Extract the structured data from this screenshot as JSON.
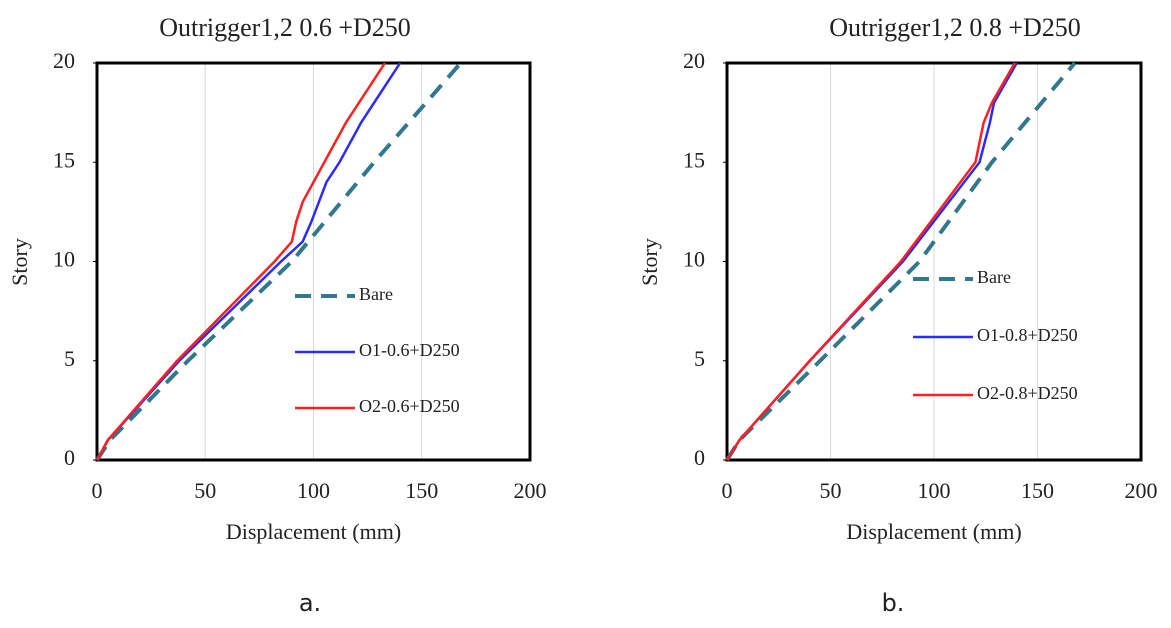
{
  "chart_data": [
    {
      "type": "line",
      "title": "Outrigger1,2 0.6 +D250",
      "xlabel": "Displacement (mm)",
      "ylabel": "Story",
      "caption": "a.",
      "xlim": [
        0,
        200
      ],
      "xticks": [
        0,
        50,
        100,
        150,
        200
      ],
      "ylim": [
        0,
        20
      ],
      "yticks": [
        0,
        5,
        10,
        15,
        20
      ],
      "grid": true,
      "series": [
        {
          "name": "Bare",
          "color": "#31788f",
          "dashed": true,
          "x": [
            0,
            6,
            42,
            90,
            128,
            168
          ],
          "y": [
            0,
            1,
            5,
            10,
            15,
            20
          ]
        },
        {
          "name": "O1-0.6+D250",
          "color": "#2b2bff",
          "x": [
            0,
            5,
            38,
            85,
            95,
            99,
            106,
            112,
            122,
            140
          ],
          "y": [
            0,
            1,
            5,
            10,
            11,
            12,
            14,
            15,
            17,
            20
          ]
        },
        {
          "name": "O2-0.6+D250",
          "color": "#ff2020",
          "x": [
            0,
            5,
            37,
            82,
            90,
            92,
            95,
            100,
            115,
            133
          ],
          "y": [
            0,
            1,
            5,
            10,
            11,
            12,
            13,
            14,
            17,
            20
          ]
        }
      ]
    },
    {
      "type": "line",
      "title": "Outrigger1,2 0.8 +D250",
      "xlabel": "Displacement (mm)",
      "ylabel": "Story",
      "caption": "b.",
      "xlim": [
        0,
        200
      ],
      "xticks": [
        0,
        50,
        100,
        150,
        200
      ],
      "ylim": [
        0,
        20
      ],
      "yticks": [
        0,
        5,
        10,
        15,
        20
      ],
      "grid": true,
      "series": [
        {
          "name": "Bare",
          "color": "#31788f",
          "dashed": true,
          "x": [
            0,
            6,
            45,
            93,
            128,
            168
          ],
          "y": [
            0,
            1,
            5,
            10,
            15,
            20
          ]
        },
        {
          "name": "O1-0.8+D250",
          "color": "#2b2bff",
          "x": [
            0,
            6,
            40,
            85,
            122,
            127,
            129,
            140
          ],
          "y": [
            0,
            1,
            5,
            10,
            15,
            17,
            18,
            20
          ]
        },
        {
          "name": "O2-0.8+D250",
          "color": "#ff2020",
          "x": [
            0,
            6,
            40,
            84,
            120,
            124,
            128,
            139
          ],
          "y": [
            0,
            1,
            5,
            10,
            15,
            17,
            18,
            20
          ]
        }
      ]
    }
  ]
}
